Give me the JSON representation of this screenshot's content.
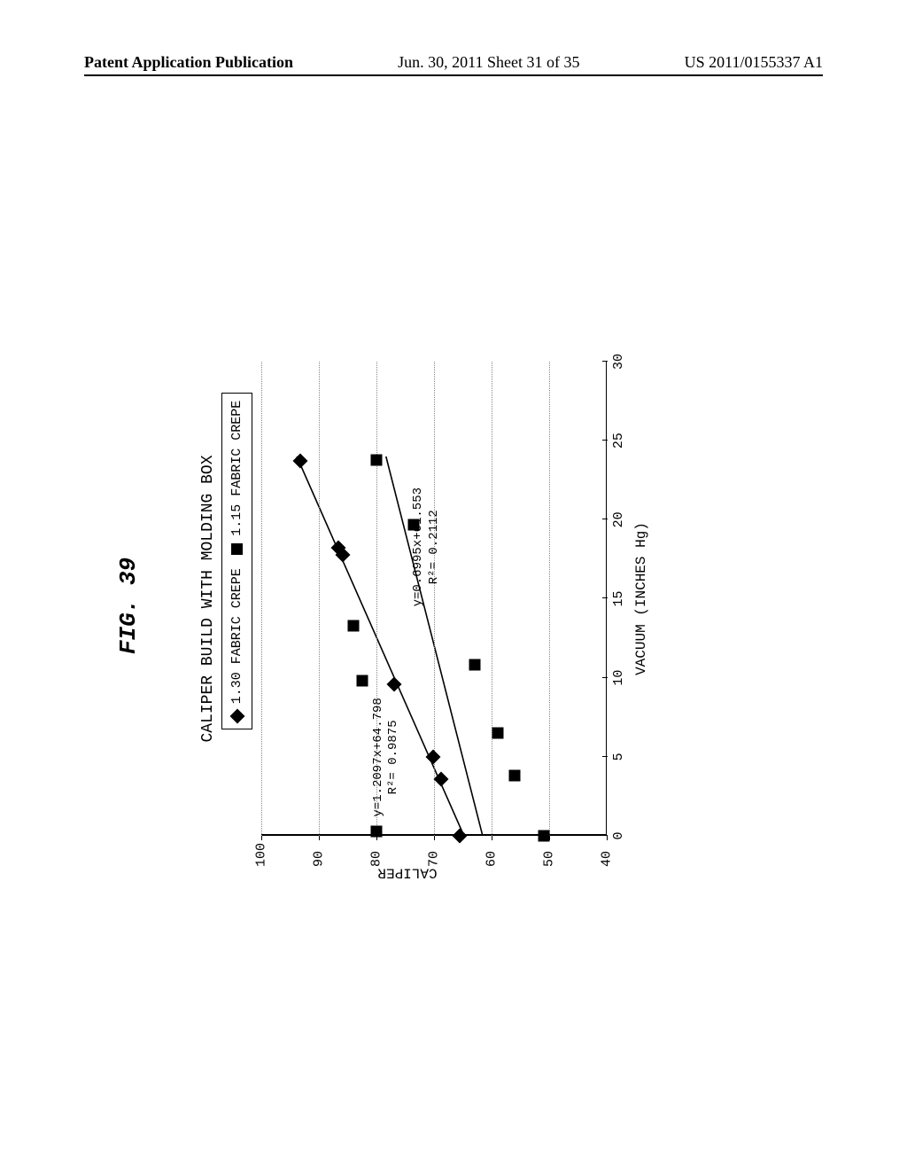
{
  "header": {
    "left": "Patent Application Publication",
    "center": "Jun. 30, 2011  Sheet 31 of 35",
    "right": "US 2011/0155337 A1"
  },
  "figure": {
    "label": "FIG.  39",
    "title": "CALIPER BUILD WITH MOLDING BOX",
    "type": "scatter",
    "x_axis": {
      "label": "VACUUM (INCHES Hg)",
      "min": 0,
      "max": 30,
      "ticks": [
        0,
        5,
        10,
        15,
        20,
        25,
        30
      ]
    },
    "y_axis": {
      "label": "CALIPER",
      "min": 40,
      "max": 100,
      "ticks": [
        40,
        50,
        60,
        70,
        80,
        90,
        100
      ],
      "gridlines": [
        50,
        60,
        70,
        80,
        90,
        100
      ]
    },
    "legend": {
      "items": [
        {
          "marker": "diamond",
          "label": "1.30 FABRIC CREPE"
        },
        {
          "marker": "square",
          "label": "1.15 FABRIC CREPE"
        }
      ]
    },
    "series": [
      {
        "name": "1.30 FABRIC CREPE",
        "marker": "diamond",
        "color": "#000000",
        "points": [
          {
            "x": 0,
            "y": 65.5
          },
          {
            "x": 3.6,
            "y": 68.8
          },
          {
            "x": 5,
            "y": 70.2
          },
          {
            "x": 9.6,
            "y": 77
          },
          {
            "x": 17.8,
            "y": 85.8
          },
          {
            "x": 18.2,
            "y": 86.6
          },
          {
            "x": 23.7,
            "y": 93.3
          }
        ],
        "trendline": {
          "slope": 1.2097,
          "intercept": 64.798,
          "r2": 0.9875,
          "eq_text_1": "y=1.2097x+64.798",
          "eq_text_2": "R²= 0.9875",
          "label_pos": {
            "x": 1.2,
            "y": 81
          }
        }
      },
      {
        "name": "1.15 FABRIC CREPE",
        "marker": "square",
        "color": "#000000",
        "points": [
          {
            "x": 0.0,
            "y": 51
          },
          {
            "x": 0.3,
            "y": 80
          },
          {
            "x": 3.8,
            "y": 56
          },
          {
            "x": 6.5,
            "y": 59
          },
          {
            "x": 9.8,
            "y": 82.5
          },
          {
            "x": 10.8,
            "y": 63
          },
          {
            "x": 13.3,
            "y": 84
          },
          {
            "x": 19.7,
            "y": 73.5
          },
          {
            "x": 23.8,
            "y": 80
          }
        ],
        "trendline": {
          "slope": 0.6995,
          "intercept": 61.553,
          "r2": 0.2112,
          "eq_text_1": "y=0.6995x+61.553",
          "eq_text_2": "R²= 0.2112",
          "label_pos": {
            "x": 14.5,
            "y": 74
          }
        }
      }
    ],
    "styling": {
      "background_color": "#ffffff",
      "axis_color": "#000000",
      "grid_color": "#888888",
      "grid_style": "dotted",
      "font_family": "Courier New",
      "marker_size": 12,
      "line_width": 1.6,
      "title_fontsize": 18,
      "label_fontsize": 16,
      "tick_fontsize": 15,
      "eq_fontsize": 14
    }
  }
}
